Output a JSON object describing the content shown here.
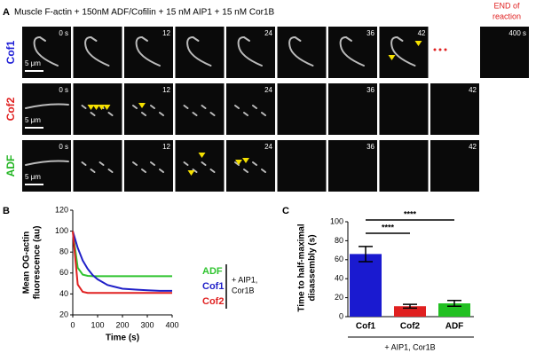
{
  "panel_a": {
    "label": "A",
    "title": "Muscle F-actin + 150nM ADF/Cofilin + 15 nM AIP1 + 15 nM Cor1B",
    "end_label": [
      "END of",
      "reaction"
    ],
    "scale_bar": "5 μm",
    "rows": [
      {
        "name": "Cof1",
        "color": "#1f1fd6",
        "times": [
          "0 s",
          null,
          "12",
          null,
          "24",
          null,
          "36",
          "42"
        ],
        "last_time": "400 s"
      },
      {
        "name": "Cof2",
        "color": "#e02020",
        "times": [
          "0 s",
          null,
          "12",
          null,
          "24",
          null,
          "36",
          null,
          "42"
        ]
      },
      {
        "name": "ADF",
        "color": "#22b522",
        "times": [
          "0 s",
          null,
          "12",
          null,
          "24",
          null,
          "36",
          null,
          "42"
        ]
      }
    ]
  },
  "chart_data": [
    {
      "type": "line",
      "panel": "B",
      "x": [
        0,
        20,
        40,
        60,
        80,
        100,
        140,
        200,
        260,
        300,
        350,
        400
      ],
      "series": [
        {
          "name": "ADF",
          "color": "#2fc42f",
          "values": [
            100,
            65,
            58.5,
            57.3,
            57,
            57,
            57,
            57,
            57,
            57,
            57,
            57
          ]
        },
        {
          "name": "Cof1",
          "color": "#2020c8",
          "values": [
            100,
            84,
            72,
            64,
            58,
            54,
            48.5,
            45,
            44,
            43.5,
            43,
            43
          ]
        },
        {
          "name": "Cof2",
          "color": "#e02020",
          "values": [
            100,
            49,
            42,
            41,
            41,
            41,
            41,
            41,
            41,
            41,
            41,
            41
          ]
        }
      ],
      "xlim": [
        0,
        400
      ],
      "ylim": [
        20,
        120
      ],
      "xticks": [
        0,
        100,
        200,
        300,
        400
      ],
      "yticks": [
        20,
        40,
        60,
        80,
        100,
        120
      ],
      "xlabel": "Time (s)",
      "ylabel": [
        "Mean OG-actin",
        "fluorescence (au)"
      ],
      "legend_note": [
        "+ AIP1,",
        "Cor1B"
      ]
    },
    {
      "type": "bar",
      "panel": "C",
      "categories": [
        "Cof1",
        "Cof2",
        "ADF"
      ],
      "values": [
        66,
        11,
        14
      ],
      "errors": [
        8,
        2,
        3
      ],
      "colors": [
        "#1a1ad0",
        "#e02020",
        "#22c022"
      ],
      "ylim": [
        0,
        100
      ],
      "yticks": [
        0,
        20,
        40,
        60,
        80,
        100
      ],
      "ylabel": [
        "Time to half-maximal",
        "disassembly (s)"
      ],
      "significance": [
        "****",
        "****"
      ],
      "xnote": "+ AIP1, Cor1B"
    }
  ]
}
